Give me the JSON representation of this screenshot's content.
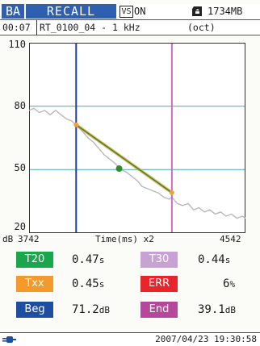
{
  "header": {
    "mode": "BA",
    "function": "RECALL",
    "vs_label": "VS",
    "vs_state": "ON",
    "memory": "1734MB",
    "sd_icon": "sd-card-icon"
  },
  "subheader": {
    "time": "00:07",
    "file": "RT_0100_04 - 1 kHz",
    "band": "(oct)"
  },
  "colors": {
    "curve": "#b8b8b8",
    "fit_line": "#2e8b2e",
    "fit_overlay": "#f0a040",
    "cursor_left": "#1f3f9f",
    "cursor_right": "#c86cc8",
    "grid": "#5ab5b5",
    "t20": "#1aa64a",
    "t30": "#c7a2d2",
    "txx": "#f39a2a",
    "err": "#e6262b",
    "beg": "#1e4ea1",
    "end": "#b5489a"
  },
  "chart_data": {
    "type": "line",
    "xlabel": "Time(ms) x2",
    "ylabel": "dB",
    "x_start": "3742",
    "x_end": "4542",
    "xlim": [
      3742,
      4542
    ],
    "ylim": [
      20,
      110
    ],
    "y_ticks": [
      "110",
      "80",
      "50",
      "20"
    ],
    "y_tick_values": [
      110,
      80,
      50,
      20
    ],
    "grid_y": [
      80,
      50
    ],
    "cursor_begin_x": 3916,
    "cursor_end_x": 4270,
    "series": [
      {
        "x": [
          3742,
          3760,
          3780,
          3800,
          3820,
          3840,
          3860,
          3880,
          3900,
          3916,
          3940,
          3960,
          3980,
          4000,
          4020,
          4040,
          4060,
          4080,
          4100,
          4120,
          4140,
          4160,
          4180,
          4200,
          4220,
          4240,
          4260,
          4270,
          4290,
          4310,
          4330,
          4350,
          4370,
          4390,
          4410,
          4430,
          4450,
          4470,
          4490,
          4510,
          4530,
          4542
        ],
        "y": [
          78,
          79,
          77,
          78,
          76,
          78,
          76,
          74,
          73,
          71,
          68,
          65,
          63,
          60,
          57,
          55,
          53,
          50,
          49,
          47,
          45,
          42,
          41,
          40,
          39,
          37,
          36,
          37,
          34,
          33,
          34,
          31,
          32,
          30,
          31,
          29,
          30,
          28,
          29,
          27,
          28,
          27
        ]
      }
    ],
    "fit_line": {
      "x": [
        3916,
        4270
      ],
      "y": [
        71.2,
        39.1
      ]
    },
    "fit_marker": {
      "x": 4075,
      "y": 50.5
    }
  },
  "results": {
    "t20_label": "T20",
    "t20_value": "0.47",
    "t20_unit": "s",
    "t30_label": "T30",
    "t30_value": "0.44",
    "t30_unit": "s",
    "txx_label": "Txx",
    "txx_value": "0.45",
    "txx_unit": "s",
    "err_label": "ERR",
    "err_value": "6",
    "err_unit": "%",
    "beg_label": "Beg",
    "beg_value": "71.2",
    "beg_unit": "dB",
    "end_label": "End",
    "end_value": "39.1",
    "end_unit": "dB"
  },
  "footer": {
    "power_icon": "plug-icon",
    "datetime": "2007/04/23 19:30:58"
  }
}
